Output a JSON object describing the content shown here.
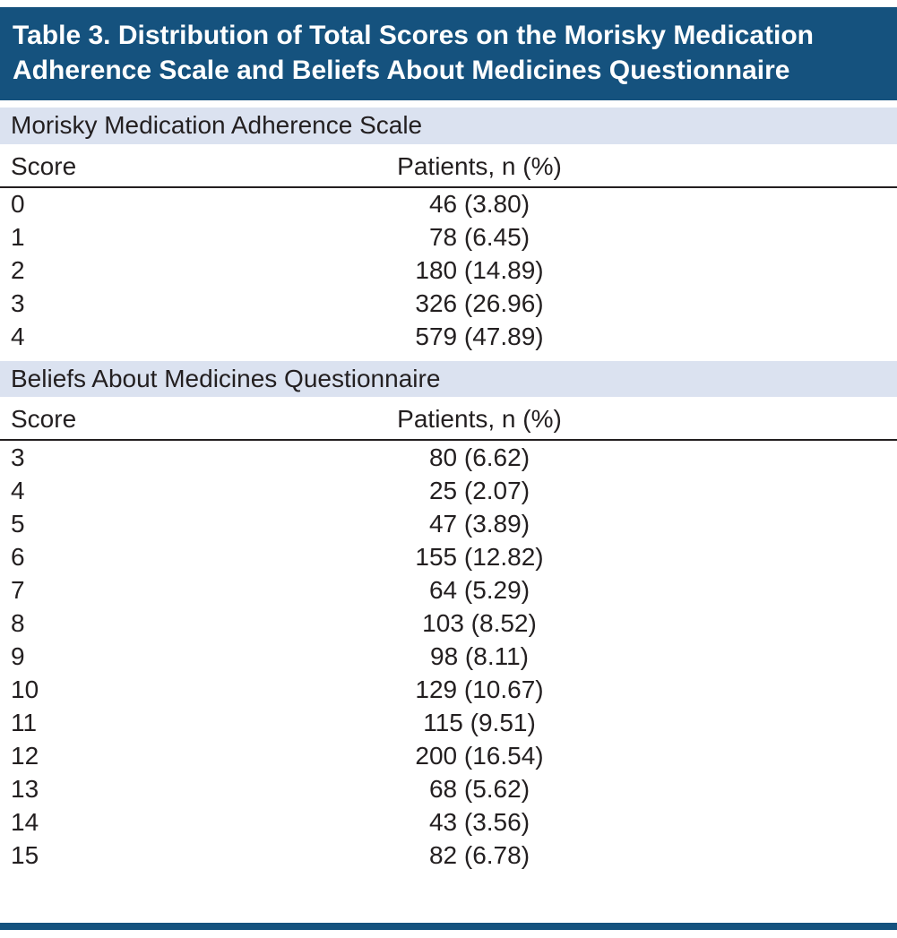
{
  "table": {
    "title": "Table 3. Distribution of Total Scores on the Morisky Medication Adherence Scale and Beliefs About Medicines Questionnaire",
    "colors": {
      "title_bar": "#15527e",
      "band": "#dbe2f0",
      "rule": "#231f20",
      "text": "#231f20",
      "title_text": "#ffffff"
    },
    "sections": [
      {
        "header": "Morisky Medication Adherence Scale",
        "columns": [
          "Score",
          "Patients, n (%)"
        ],
        "rows": [
          [
            "0",
            "46 (3.80)"
          ],
          [
            "1",
            "78 (6.45)"
          ],
          [
            "2",
            "180 (14.89)"
          ],
          [
            "3",
            "326 (26.96)"
          ],
          [
            "4",
            "579 (47.89)"
          ]
        ]
      },
      {
        "header": "Beliefs About Medicines Questionnaire",
        "columns": [
          "Score",
          "Patients, n (%)"
        ],
        "rows": [
          [
            "3",
            "80 (6.62)"
          ],
          [
            "4",
            "25 (2.07)"
          ],
          [
            "5",
            "47 (3.89)"
          ],
          [
            "6",
            "155 (12.82)"
          ],
          [
            "7",
            "64 (5.29)"
          ],
          [
            "8",
            "103 (8.52)"
          ],
          [
            "9",
            "98 (8.11)"
          ],
          [
            "10",
            "129 (10.67)"
          ],
          [
            "11",
            "115 (9.51)"
          ],
          [
            "12",
            "200 (16.54)"
          ],
          [
            "13",
            "68 (5.62)"
          ],
          [
            "14",
            "43 (3.56)"
          ],
          [
            "15",
            "82 (6.78)"
          ]
        ]
      }
    ]
  }
}
